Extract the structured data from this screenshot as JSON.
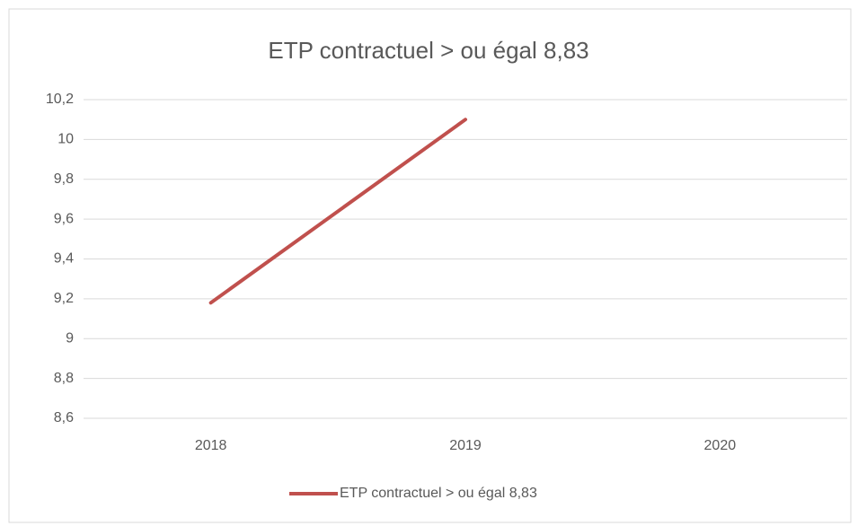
{
  "chart_data": {
    "type": "line",
    "title": "ETP contractuel > ou égal 8,83",
    "categories": [
      "2018",
      "2019",
      "2020"
    ],
    "series": [
      {
        "name": "ETP contractuel > ou égal 8,83",
        "color": "#c0504d",
        "values": [
          9.18,
          10.1,
          null
        ]
      }
    ],
    "ylim": [
      8.6,
      10.2
    ],
    "yticks": [
      {
        "value": 8.6,
        "label": "8,6"
      },
      {
        "value": 8.8,
        "label": "8,8"
      },
      9,
      {
        "value": 9.2,
        "label": "9,2"
      },
      {
        "value": 9.4,
        "label": "9,4"
      },
      {
        "value": 9.6,
        "label": "9,6"
      },
      {
        "value": 9.8,
        "label": "9,8"
      },
      10,
      {
        "value": 10.2,
        "label": "10,2"
      }
    ],
    "grid": true,
    "legend": "bottom"
  }
}
